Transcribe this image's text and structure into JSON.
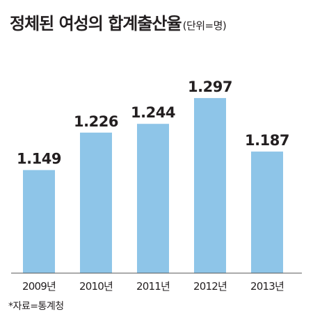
{
  "header": {
    "title": "정체된 여성의 합계출산율",
    "unit": "(단위=명)"
  },
  "footer": {
    "source": "*자료=통계청"
  },
  "colors": {
    "bar": "#8ec5e8",
    "axis": "#555555",
    "text": "#231f20"
  },
  "chart_data": {
    "type": "bar",
    "title": "정체된 여성의 합계출산율",
    "unit": "(단위=명)",
    "categories": [
      "2009년",
      "2010년",
      "2011년",
      "2012년",
      "2013년"
    ],
    "values": [
      1.149,
      1.226,
      1.244,
      1.297,
      1.187
    ],
    "value_labels": [
      "1.149",
      "1.226",
      "1.244",
      "1.297",
      "1.187"
    ],
    "grid": false,
    "legend": "none"
  }
}
